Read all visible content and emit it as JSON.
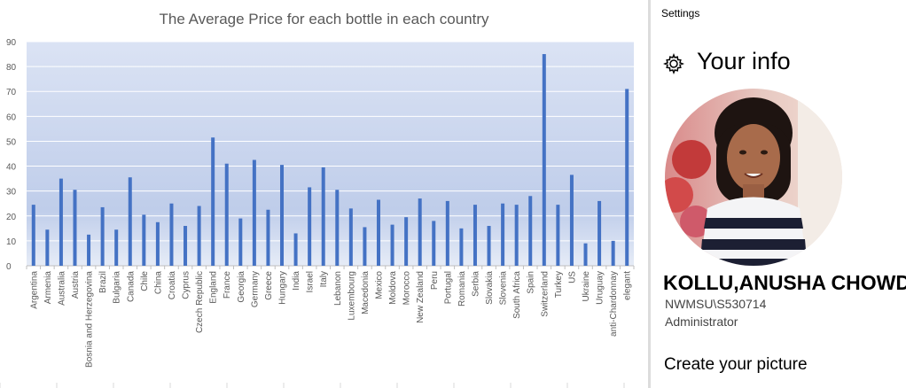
{
  "chart_data": {
    "type": "bar",
    "title": "The Average Price for each bottle in each country",
    "xlabel": "",
    "ylabel": "",
    "ylim": [
      0,
      90
    ],
    "yticks": [
      0,
      10,
      20,
      30,
      40,
      50,
      60,
      70,
      80,
      90
    ],
    "grid": true,
    "legend": "none",
    "colors": {
      "bar": "#4472c4",
      "plot_bg_top": "#dbe3f4",
      "plot_bg_bottom": "#ffffff",
      "grid": "#ffffff"
    },
    "categories": [
      "Argentina",
      "Armenia",
      "Australia",
      "Austria",
      "Bosnia and Herzegovina",
      "Brazil",
      "Bulgaria",
      "Canada",
      "Chile",
      "China",
      "Croatia",
      "Cyprus",
      "Czech Republic",
      "England",
      "France",
      "Georgia",
      "Germany",
      "Greece",
      "Hungary",
      "India",
      "Israel",
      "Italy",
      "Lebanon",
      "Luxembourg",
      "Macedonia",
      "Mexico",
      "Moldova",
      "Morocco",
      "New Zealand",
      "Peru",
      "Portugal",
      "Romania",
      "Serbia",
      "Slovakia",
      "Slovenia",
      "South Africa",
      "Spain",
      "Switzerland",
      "Turkey",
      "US",
      "Ukraine",
      "Uruguay",
      "anti-Chardonnay",
      "elegant"
    ],
    "values": [
      24.5,
      14.5,
      35,
      30.5,
      12.5,
      23.5,
      14.5,
      35.5,
      20.5,
      17.5,
      25,
      16,
      24,
      51.5,
      41,
      19,
      42.5,
      22.5,
      40.5,
      13,
      31.5,
      39.5,
      30.5,
      23,
      15.5,
      26.5,
      16.5,
      19.5,
      27,
      18,
      26,
      15,
      24.5,
      16,
      25,
      24.5,
      28,
      85,
      24.5,
      36.5,
      9,
      26,
      10,
      71
    ]
  },
  "settings": {
    "window_title": "Settings",
    "section_title": "Your info",
    "user_name": "KOLLU,ANUSHA CHOWDARY",
    "account": "NWMSU\\S530714",
    "role": "Administrator",
    "create_picture": "Create your picture",
    "icon": "gear-icon"
  }
}
